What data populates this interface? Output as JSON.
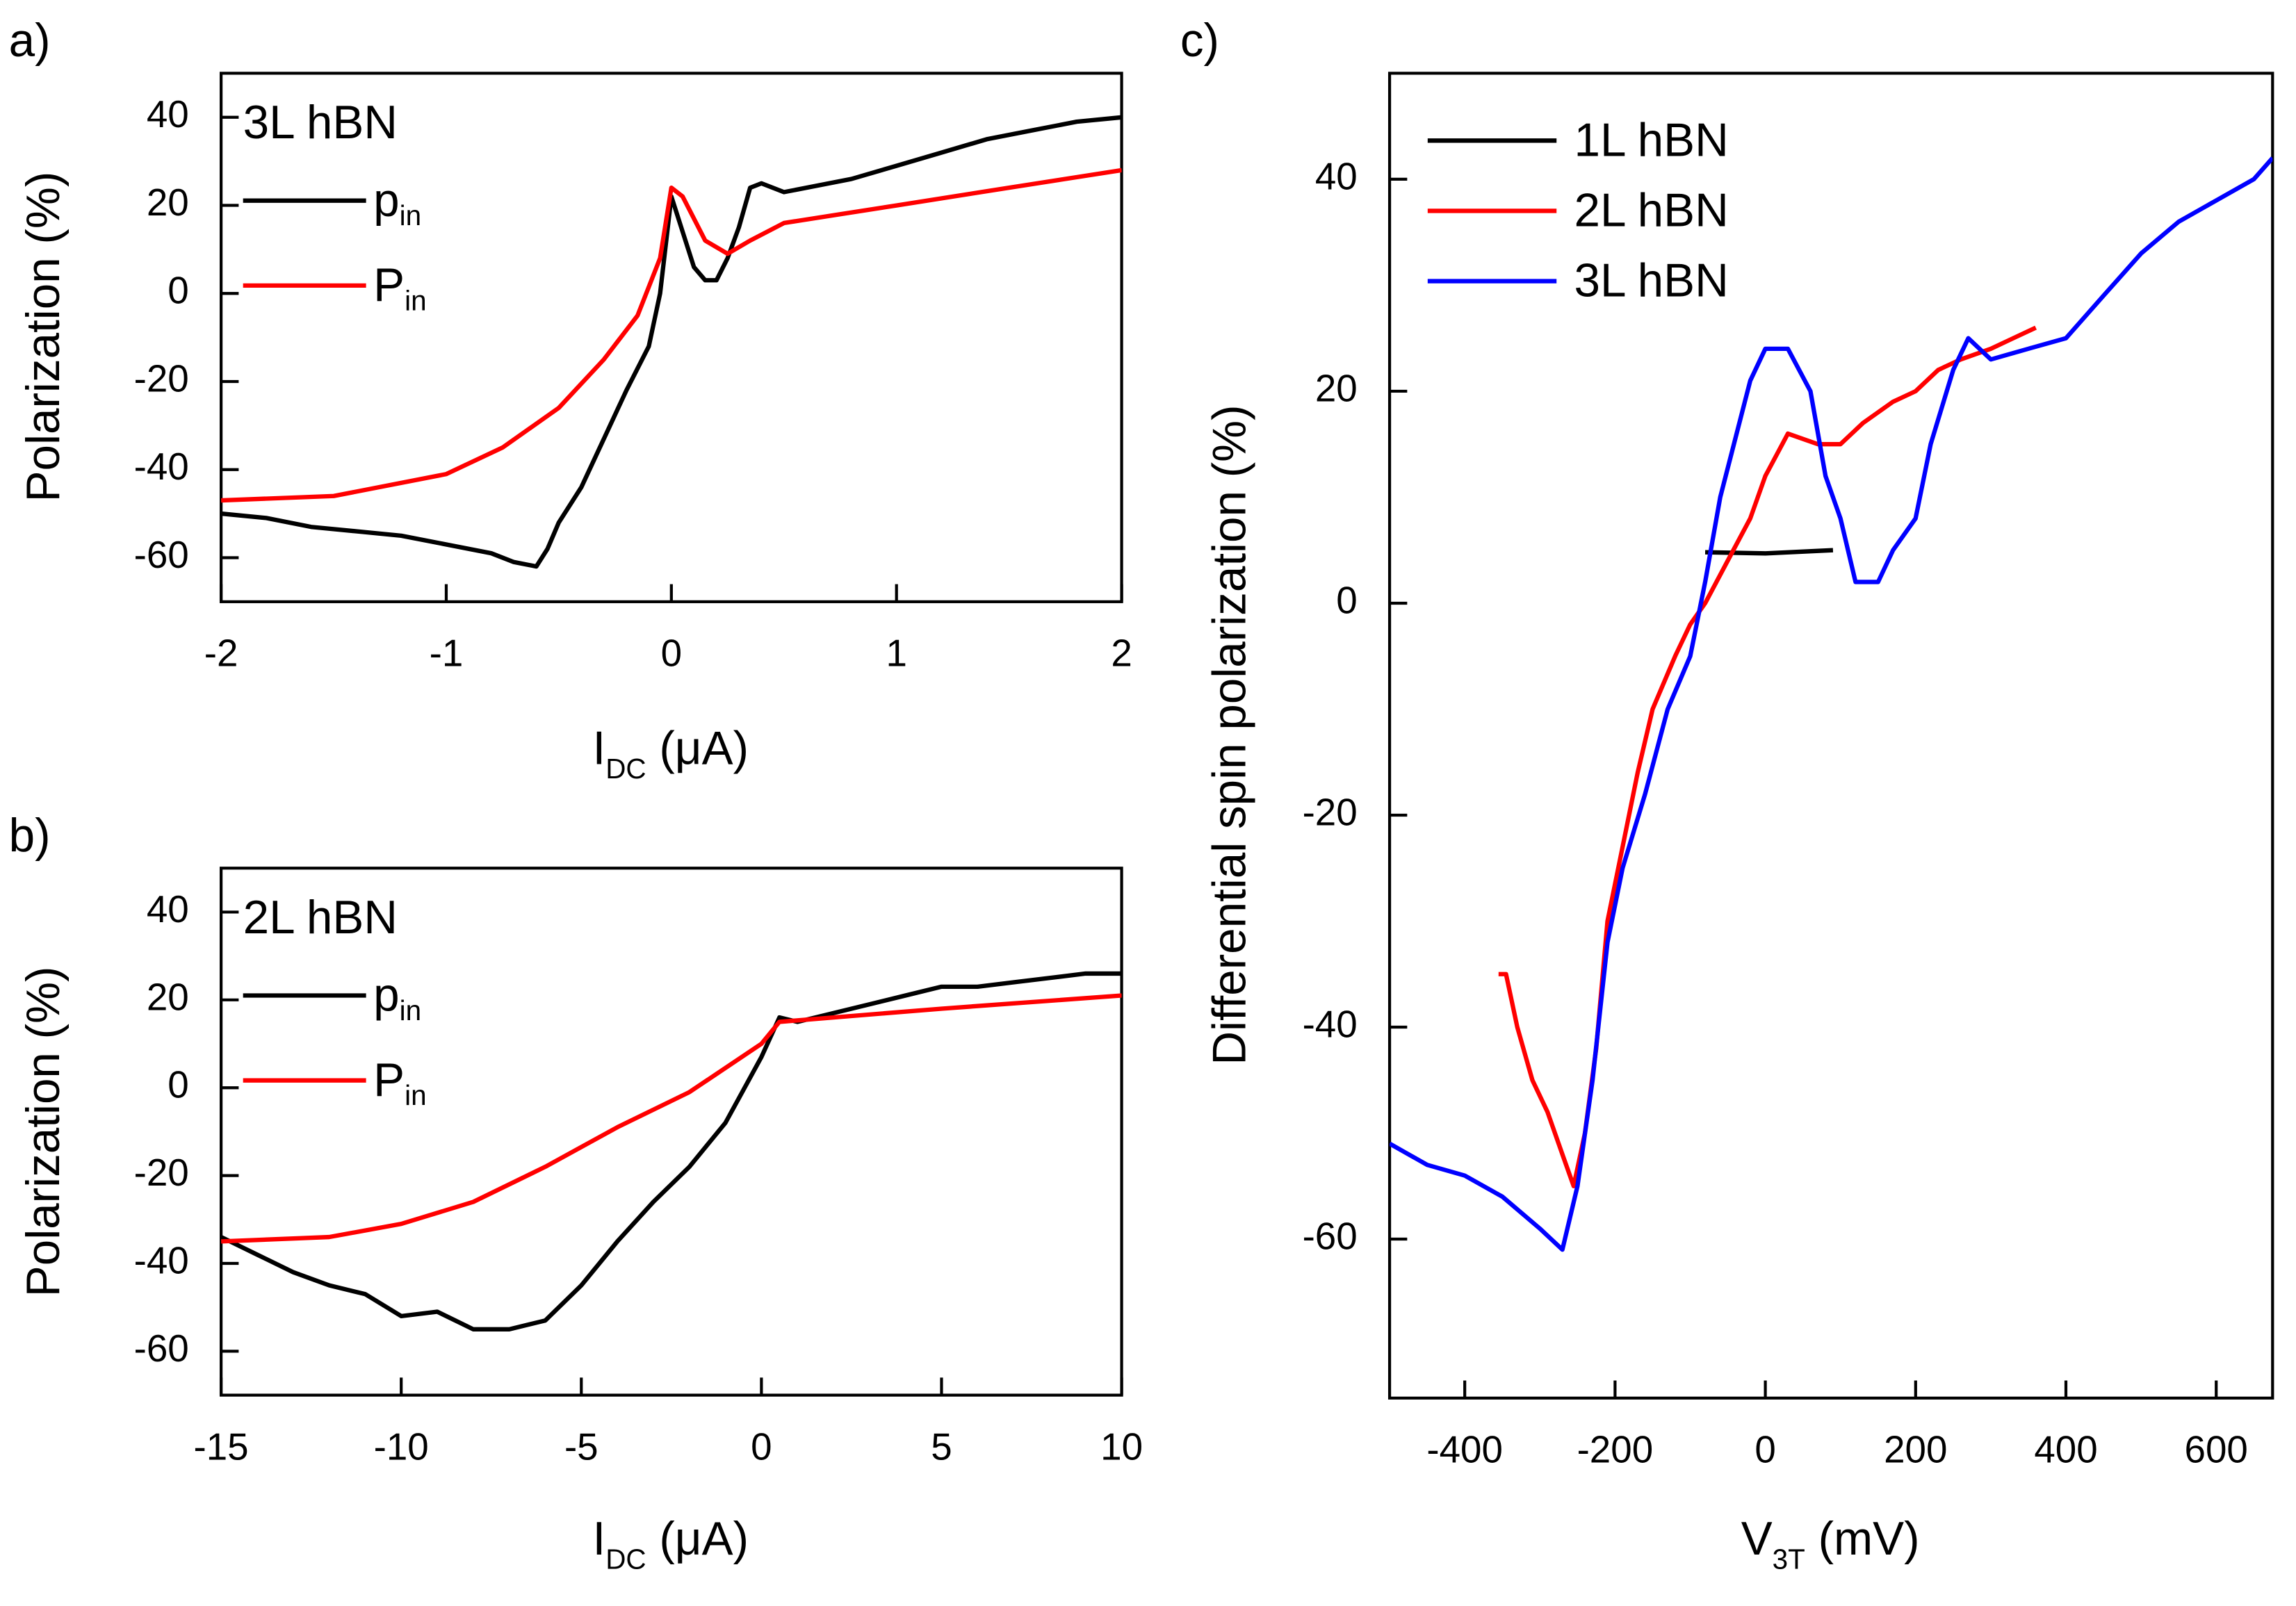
{
  "chart_data": [
    {
      "type": "line",
      "panel_label": "a)",
      "annotation": "3L hBN",
      "xlabel": [
        "I",
        "DC",
        " (μA)"
      ],
      "ylabel": "Polarization (%)",
      "xlim": [
        -2,
        2
      ],
      "xticks": [
        -2,
        -1,
        0,
        1,
        2
      ],
      "ylim": [
        -70,
        50
      ],
      "yticks": [
        -60,
        -40,
        -20,
        0,
        20,
        40
      ],
      "series": [
        {
          "name": [
            "p",
            "in"
          ],
          "color": "#000000",
          "x": [
            -2,
            -1.8,
            -1.6,
            -1.4,
            -1.2,
            -1,
            -0.8,
            -0.7,
            -0.6,
            -0.55,
            -0.5,
            -0.4,
            -0.3,
            -0.2,
            -0.1,
            -0.05,
            0,
            0.05,
            0.1,
            0.15,
            0.2,
            0.25,
            0.3,
            0.35,
            0.4,
            0.5,
            0.6,
            0.8,
            1,
            1.2,
            1.4,
            1.6,
            1.8,
            2
          ],
          "values": [
            -50,
            -51,
            -53,
            -54,
            -55,
            -57,
            -59,
            -61,
            -62,
            -58,
            -52,
            -44,
            -33,
            -22,
            -12,
            0,
            22,
            14,
            6,
            3,
            3,
            8,
            15,
            24,
            25,
            23,
            24,
            26,
            29,
            32,
            35,
            37,
            39,
            40
          ]
        },
        {
          "name": [
            "P",
            "in"
          ],
          "color": "#ff0000",
          "x": [
            -2,
            -1.5,
            -1,
            -0.75,
            -0.5,
            -0.3,
            -0.15,
            -0.05,
            0,
            0.05,
            0.15,
            0.25,
            0.35,
            0.5,
            0.75,
            1,
            1.5,
            2
          ],
          "values": [
            -47,
            -46,
            -41,
            -35,
            -26,
            -15,
            -5,
            8,
            24,
            22,
            12,
            9,
            12,
            16,
            18,
            20,
            24,
            28
          ]
        }
      ]
    },
    {
      "type": "line",
      "panel_label": "b)",
      "annotation": "2L hBN",
      "xlabel": [
        "I",
        "DC",
        " (μA)"
      ],
      "ylabel": "Polarization (%)",
      "xlim": [
        -15,
        10
      ],
      "xticks": [
        -15,
        -10,
        -5,
        0,
        5,
        10
      ],
      "ylim": [
        -70,
        50
      ],
      "yticks": [
        -60,
        -40,
        -20,
        0,
        20,
        40
      ],
      "series": [
        {
          "name": [
            "p",
            "in"
          ],
          "color": "#000000",
          "x": [
            -15,
            -14,
            -13,
            -12,
            -11,
            -10,
            -9,
            -8,
            -7,
            -6,
            -5,
            -4,
            -3,
            -2,
            -1,
            0,
            0.5,
            1,
            2,
            3,
            4,
            5,
            6,
            7,
            8,
            9,
            10
          ],
          "values": [
            -34,
            -38,
            -42,
            -45,
            -47,
            -52,
            -51,
            -55,
            -55,
            -53,
            -45,
            -35,
            -26,
            -18,
            -8,
            7,
            16,
            15,
            17,
            19,
            21,
            23,
            23,
            24,
            25,
            26,
            26
          ]
        },
        {
          "name": [
            "P",
            "in"
          ],
          "color": "#ff0000",
          "x": [
            -15,
            -12,
            -10,
            -8,
            -6,
            -4,
            -2,
            0,
            0.5,
            2,
            5,
            10
          ],
          "values": [
            -35,
            -34,
            -31,
            -26,
            -18,
            -9,
            -1,
            10,
            15,
            16,
            18,
            21
          ]
        }
      ]
    },
    {
      "type": "line",
      "panel_label": "c)",
      "xlabel": [
        "V",
        "3T",
        " (mV)"
      ],
      "ylabel": "Differential spin polarization (%)",
      "xlim": [
        -500,
        675
      ],
      "xticks": [
        -400,
        -200,
        0,
        200,
        400,
        600
      ],
      "ylim": [
        -75,
        50
      ],
      "yticks": [
        -60,
        -40,
        -20,
        0,
        20,
        40
      ],
      "series": [
        {
          "name": "1L hBN",
          "color": "#000000",
          "x": [
            -80,
            0,
            90
          ],
          "values": [
            4.8,
            4.7,
            5
          ]
        },
        {
          "name": "2L hBN",
          "color": "#ff0000",
          "x": [
            -355,
            -345,
            -330,
            -310,
            -290,
            -270,
            -255,
            -240,
            -225,
            -210,
            -190,
            -170,
            -150,
            -120,
            -100,
            -80,
            -50,
            -20,
            0,
            30,
            70,
            100,
            130,
            170,
            200,
            230,
            260,
            300,
            330,
            360
          ],
          "values": [
            -35,
            -35,
            -40,
            -45,
            -48,
            -52,
            -55,
            -50,
            -42,
            -30,
            -23,
            -16,
            -10,
            -5,
            -2,
            0,
            4,
            8,
            12,
            16,
            15,
            15,
            17,
            19,
            20,
            22,
            23,
            24,
            25,
            26
          ]
        },
        {
          "name": "3L hBN",
          "color": "#0000ff",
          "x": [
            -500,
            -450,
            -400,
            -350,
            -300,
            -270,
            -250,
            -230,
            -210,
            -190,
            -160,
            -130,
            -100,
            -80,
            -60,
            -20,
            0,
            30,
            60,
            80,
            100,
            120,
            150,
            170,
            200,
            220,
            250,
            270,
            300,
            350,
            400,
            450,
            500,
            550,
            600,
            650,
            675
          ],
          "values": [
            -51,
            -53,
            -54,
            -56,
            -59,
            -61,
            -55,
            -45,
            -32,
            -25,
            -18,
            -10,
            -5,
            2,
            10,
            21,
            24,
            24,
            20,
            12,
            8,
            2,
            2,
            5,
            8,
            15,
            22,
            25,
            23,
            24,
            25,
            29,
            33,
            36,
            38,
            40,
            42
          ]
        }
      ]
    }
  ]
}
